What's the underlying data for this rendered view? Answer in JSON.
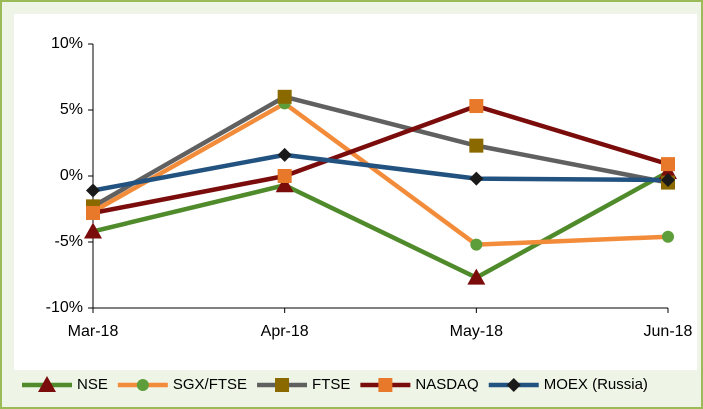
{
  "chart_data": {
    "type": "line",
    "categories": [
      "Mar-18",
      "Apr-18",
      "May-18",
      "Jun-18"
    ],
    "series": [
      {
        "name": "NSE",
        "color": "#4f8a2b",
        "marker": "triangle",
        "marker_color": "#7b0c0c",
        "values": [
          -4.2,
          -0.7,
          -7.7,
          0.3
        ]
      },
      {
        "name": "SGX/FTSE",
        "color": "#f28c3a",
        "marker": "circle",
        "marker_color": "#5e9e3a",
        "values": [
          -2.7,
          5.5,
          -5.2,
          -4.6
        ]
      },
      {
        "name": "FTSE",
        "color": "#606060",
        "marker": "square",
        "marker_color": "#8a6a00",
        "values": [
          -2.3,
          6.0,
          2.3,
          -0.5
        ]
      },
      {
        "name": "NASDAQ",
        "color": "#7b0c0c",
        "marker": "square",
        "marker_color": "#e8782a",
        "values": [
          -2.8,
          0.0,
          5.3,
          0.9
        ]
      },
      {
        "name": "MOEX (Russia)",
        "color": "#22527f",
        "marker": "diamond",
        "marker_color": "#1a1a1a",
        "values": [
          -1.1,
          1.6,
          -0.2,
          -0.3
        ]
      }
    ],
    "ylim": [
      -10,
      10
    ],
    "yticks": [
      {
        "value": -10,
        "label": "-10%"
      },
      {
        "value": -5,
        "label": "-5%"
      },
      {
        "value": 0,
        "label": "0%"
      },
      {
        "value": 5,
        "label": "5%"
      },
      {
        "value": 10,
        "label": "10%"
      }
    ],
    "grid": false,
    "legend": "bottom"
  }
}
